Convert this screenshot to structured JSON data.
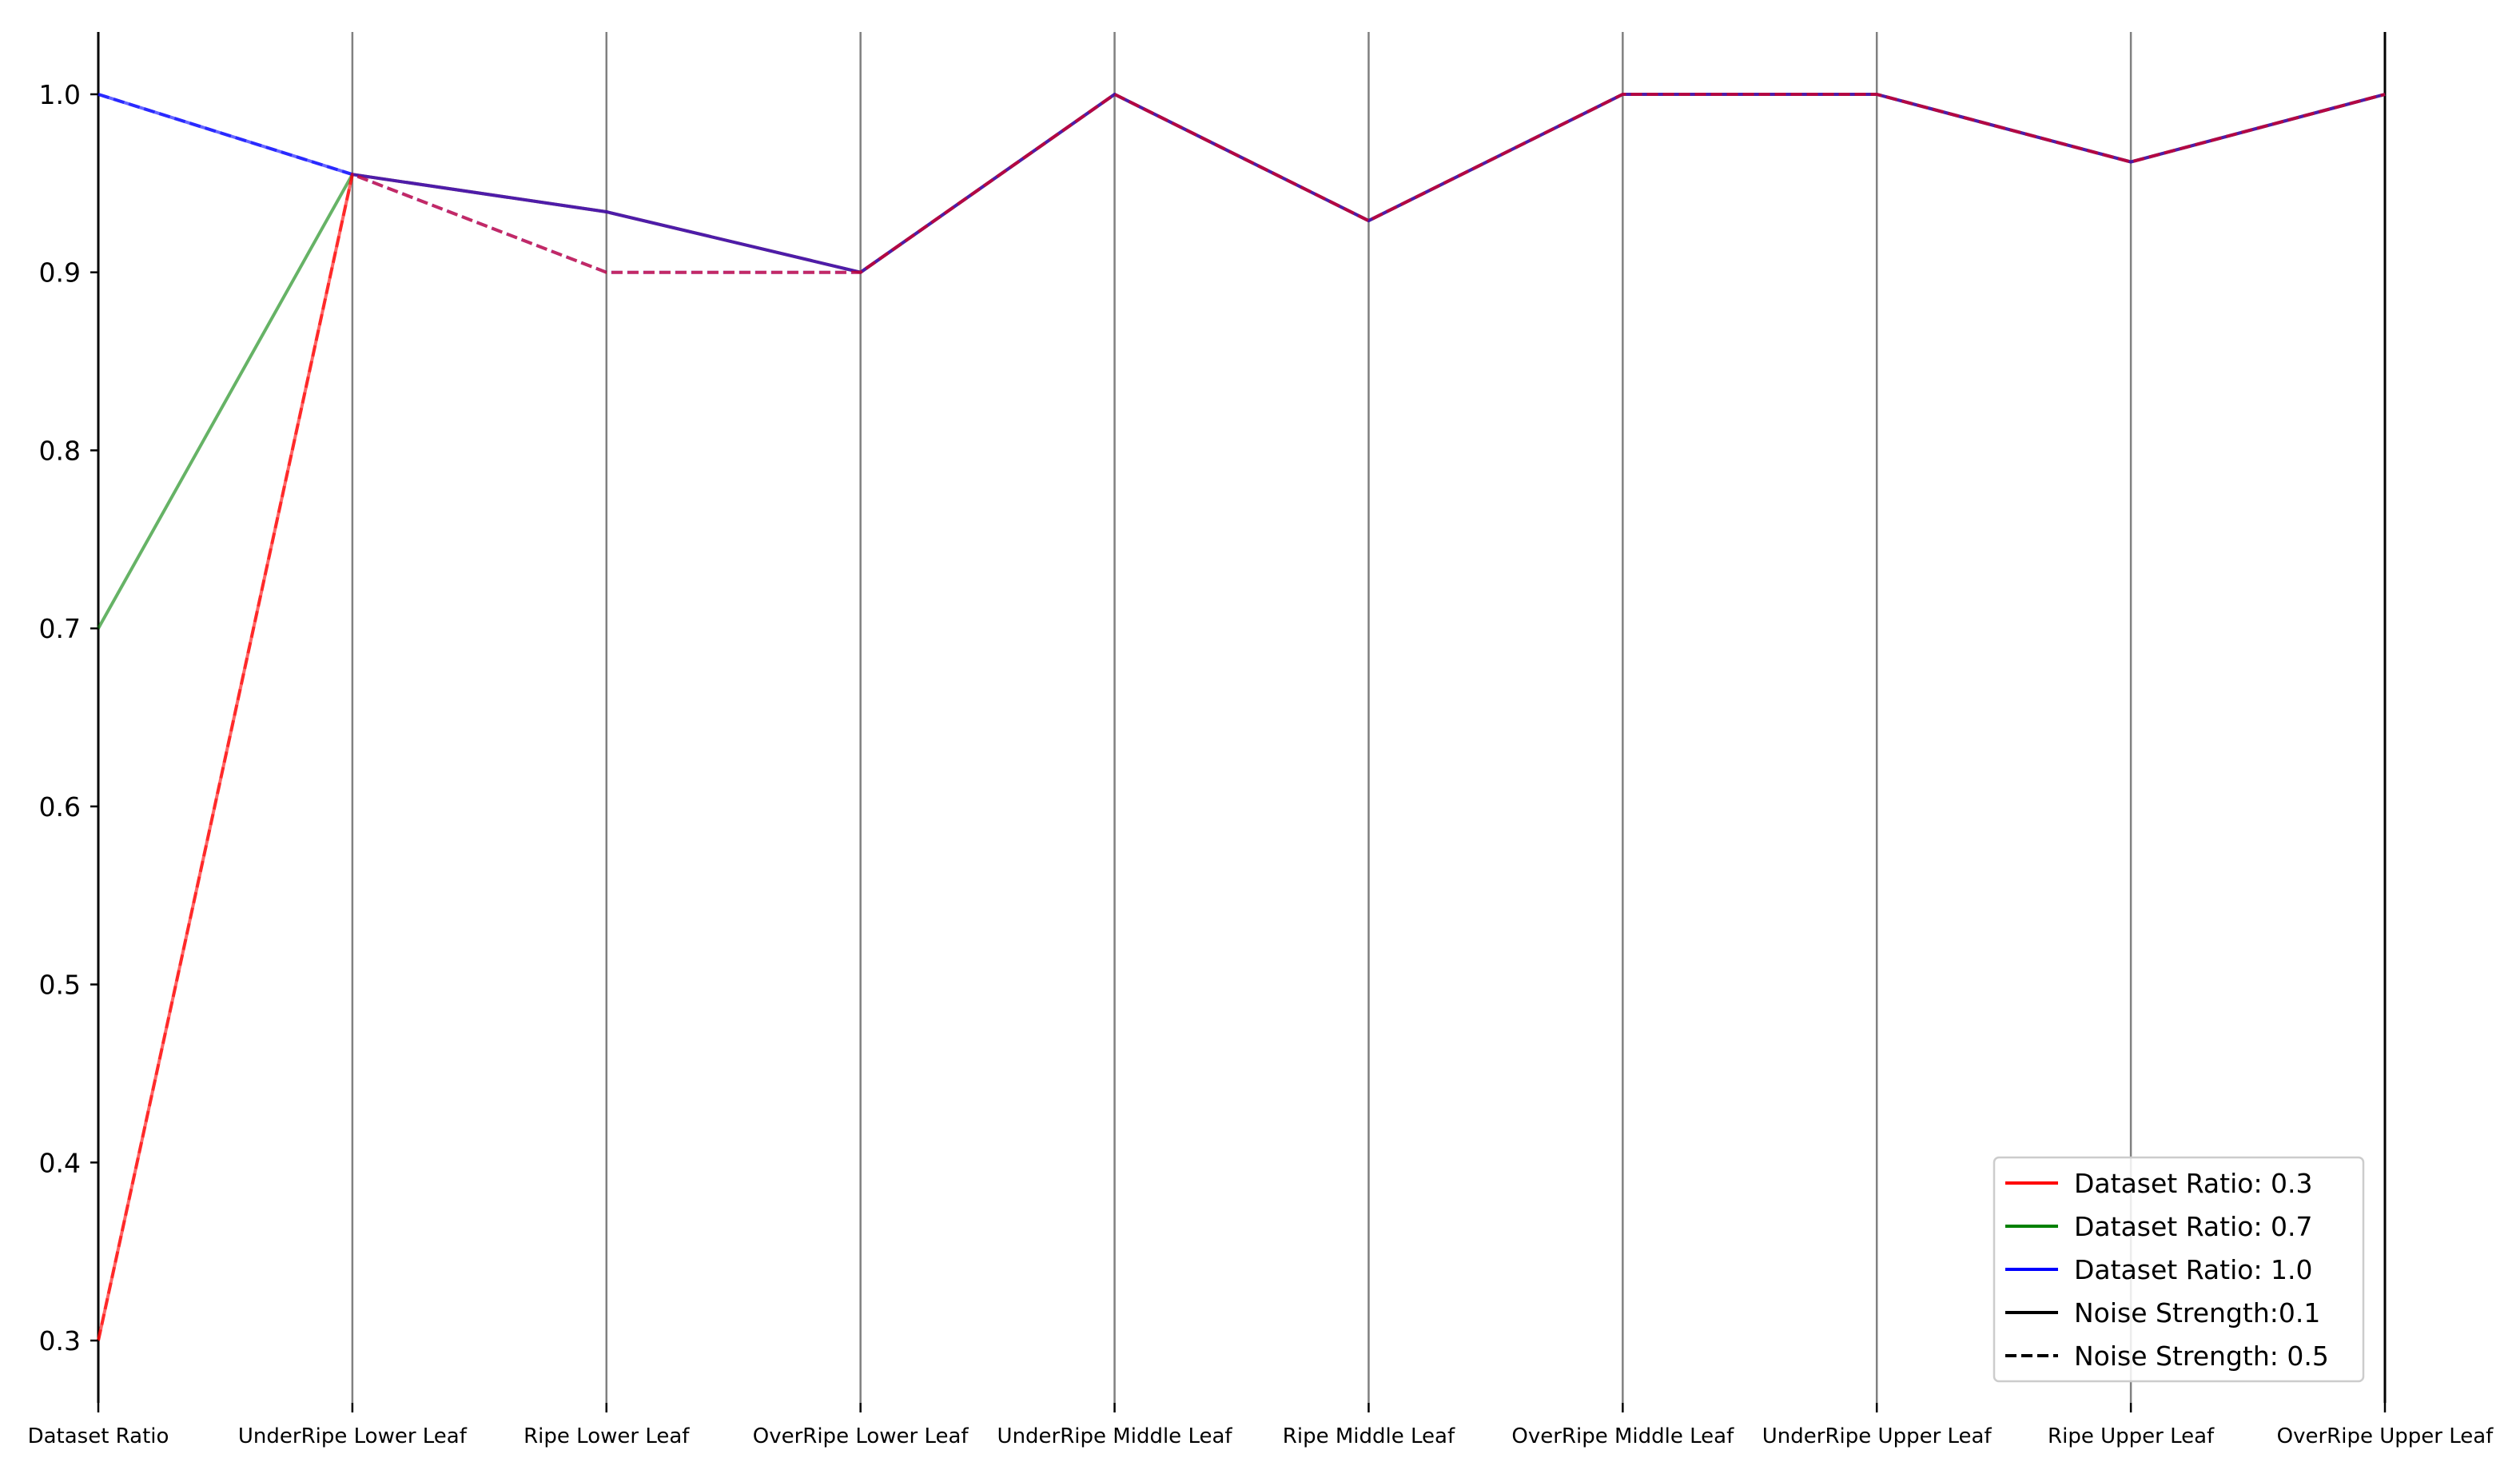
{
  "chart_data": {
    "type": "line",
    "subtype": "parallel-coordinates",
    "title": "",
    "xlabel": "",
    "ylabel": "",
    "categories": [
      "Dataset Ratio",
      "UnderRipe Lower Leaf",
      "Ripe Lower Leaf",
      "OverRipe Lower Leaf",
      "UnderRipe Middle Leaf",
      "Ripe Middle Leaf",
      "OverRipe Middle Leaf",
      "UnderRipe Upper Leaf",
      "Ripe Upper Leaf",
      "OverRipe Upper Leaf"
    ],
    "ylim": [
      0.265,
      1.035
    ],
    "yticks": [
      "0.3",
      "0.4",
      "0.5",
      "0.6",
      "0.7",
      "0.8",
      "0.9",
      "1.0"
    ],
    "grid": "vertical lines at each category",
    "legend_position": "lower-right",
    "colors": {
      "dataset_ratio_0_3": "#ff0000",
      "dataset_ratio_0_7": "#008000",
      "dataset_ratio_1_0": "#0000ff",
      "axis": "#000000",
      "gridline": "#808080"
    },
    "series": [
      {
        "color_key": "dataset_ratio_1_0",
        "style": "dashed",
        "alpha": 0.6,
        "values": [
          1.0,
          0.955,
          0.9,
          0.9,
          1.0,
          0.929,
          1.0,
          1.0,
          0.962,
          1.0
        ]
      },
      {
        "color_key": "dataset_ratio_0_7",
        "style": "solid",
        "alpha": 0.6,
        "values": [
          0.7,
          0.955,
          0.934,
          0.9,
          1.0,
          0.929,
          1.0,
          1.0,
          0.962,
          1.0
        ]
      },
      {
        "color_key": "dataset_ratio_0_3",
        "style": "solid",
        "alpha": 0.6,
        "values": [
          0.3,
          0.955,
          0.934,
          0.9,
          1.0,
          0.929,
          1.0,
          1.0,
          0.962,
          1.0
        ]
      },
      {
        "color_key": "dataset_ratio_1_0",
        "style": "solid",
        "alpha": 0.6,
        "values": [
          1.0,
          0.955,
          0.934,
          0.9,
          1.0,
          0.929,
          1.0,
          1.0,
          0.962,
          1.0
        ]
      },
      {
        "color_key": "dataset_ratio_0_3",
        "style": "dashed",
        "alpha": 0.6,
        "values": [
          0.3,
          0.955,
          0.9,
          0.9,
          1.0,
          0.929,
          1.0,
          1.0,
          0.962,
          1.0
        ]
      }
    ],
    "legend": [
      {
        "label": "Dataset Ratio: 0.3",
        "color_key": "dataset_ratio_0_3",
        "style": "solid"
      },
      {
        "label": "Dataset Ratio: 0.7",
        "color_key": "dataset_ratio_0_7",
        "style": "solid"
      },
      {
        "label": "Dataset Ratio: 1.0",
        "color_key": "dataset_ratio_1_0",
        "style": "solid"
      },
      {
        "label": "Noise Strength:0.1",
        "color_key": "axis",
        "style": "solid"
      },
      {
        "label": "Noise Strength: 0.5",
        "color_key": "axis",
        "style": "dashed"
      }
    ]
  }
}
